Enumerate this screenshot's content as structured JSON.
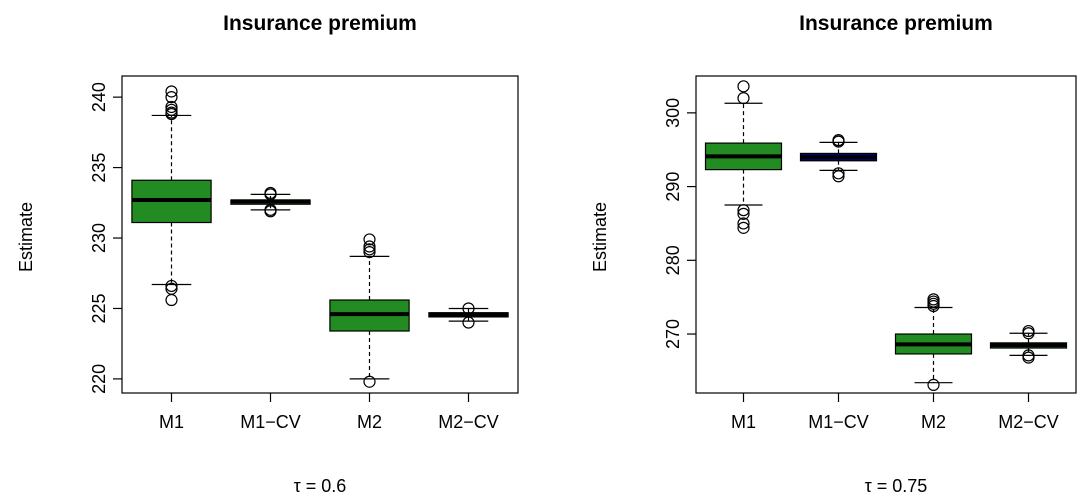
{
  "colors": {
    "green": "#228b22",
    "navy": "#000080",
    "outline": "#000000"
  },
  "chart_data": [
    {
      "type": "boxplot",
      "title": "Insurance premium",
      "xlabel": "τ = 0.6",
      "ylabel": "Estimate",
      "ylim": [
        219,
        241.5
      ],
      "yticks": [
        220,
        225,
        230,
        235,
        240
      ],
      "categories": [
        "M1",
        "M1−CV",
        "M2",
        "M2−CV"
      ],
      "boxes": [
        {
          "min": 226.7,
          "q1": 231.1,
          "median": 232.7,
          "q3": 234.1,
          "max": 238.7,
          "fill": "#228b22",
          "outliers": [
            225.6,
            226.4,
            226.6,
            238.8,
            238.9,
            239.1,
            239.3,
            240.0,
            240.4
          ]
        },
        {
          "min": 232.0,
          "q1": 232.4,
          "median": 232.6,
          "q3": 232.7,
          "max": 233.1,
          "fill": "#228b22",
          "outliers": [
            231.9,
            232.0,
            233.1,
            233.2
          ]
        },
        {
          "min": 220.0,
          "q1": 223.4,
          "median": 224.6,
          "q3": 225.6,
          "max": 228.7,
          "fill": "#228b22",
          "outliers": [
            219.8,
            229.0,
            229.2,
            229.4,
            229.9
          ]
        },
        {
          "min": 224.1,
          "q1": 224.4,
          "median": 224.55,
          "q3": 224.7,
          "max": 225.0,
          "fill": "#228b22",
          "outliers": [
            224.0,
            225.0
          ]
        }
      ]
    },
    {
      "type": "boxplot",
      "title": "Insurance premium",
      "xlabel": "τ = 0.75",
      "ylabel": "Estimate",
      "ylim": [
        262,
        305
      ],
      "yticks": [
        270,
        280,
        290,
        300
      ],
      "categories": [
        "M1",
        "M1−CV",
        "M2",
        "M2−CV"
      ],
      "boxes": [
        {
          "min": 287.5,
          "q1": 292.3,
          "median": 294.1,
          "q3": 295.9,
          "max": 301.3,
          "fill": "#228b22",
          "outliers": [
            284.4,
            285.0,
            286.3,
            286.8,
            302.0,
            303.6
          ]
        },
        {
          "min": 292.2,
          "q1": 293.5,
          "median": 294.0,
          "q3": 294.5,
          "max": 296.0,
          "fill": "#000080",
          "outliers": [
            291.4,
            291.8,
            296.1,
            296.3
          ]
        },
        {
          "min": 263.4,
          "q1": 267.3,
          "median": 268.6,
          "q3": 270.0,
          "max": 273.6,
          "fill": "#228b22",
          "outliers": [
            263.1,
            273.8,
            274.1,
            274.4,
            274.7
          ]
        },
        {
          "min": 267.1,
          "q1": 268.1,
          "median": 268.5,
          "q3": 268.8,
          "max": 270.1,
          "fill": "#228b22",
          "outliers": [
            266.8,
            267.1,
            270.1,
            270.4
          ]
        }
      ]
    }
  ]
}
